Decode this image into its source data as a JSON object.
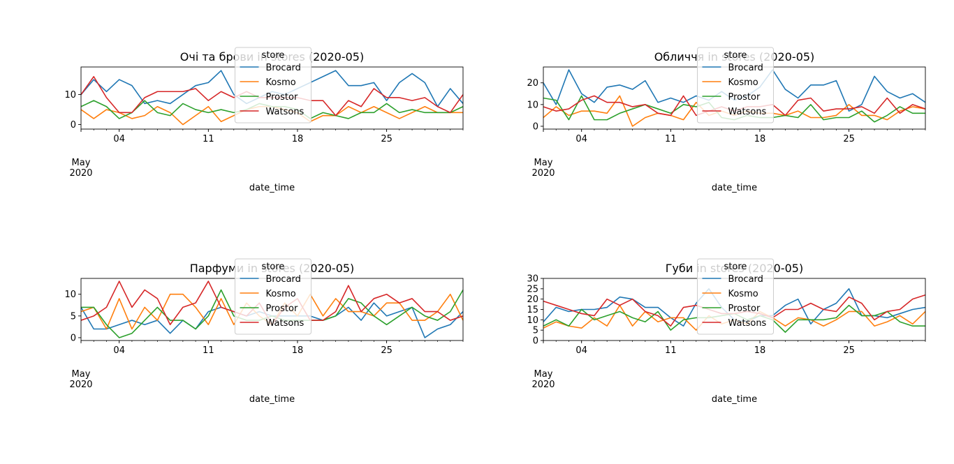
{
  "x_start_month_label": "May",
  "x_start_year_label": "2020",
  "legend_title": "store",
  "series_colors": {
    "Brocard": "#1f77b4",
    "Kosmo": "#ff7f0e",
    "Prostor": "#2ca02c",
    "Watsons": "#d62728"
  },
  "chart_data": [
    {
      "type": "line",
      "title": "Очі та брови in stores (2020-05)",
      "xlabel": "date_time",
      "ylabel": "",
      "x": [
        "2020-05-01",
        "2020-05-02",
        "2020-05-03",
        "2020-05-04",
        "2020-05-05",
        "2020-05-06",
        "2020-05-07",
        "2020-05-08",
        "2020-05-09",
        "2020-05-10",
        "2020-05-11",
        "2020-05-12",
        "2020-05-13",
        "2020-05-14",
        "2020-05-15",
        "2020-05-16",
        "2020-05-17",
        "2020-05-18",
        "2020-05-19",
        "2020-05-20",
        "2020-05-21",
        "2020-05-22",
        "2020-05-23",
        "2020-05-24",
        "2020-05-25",
        "2020-05-26",
        "2020-05-27",
        "2020-05-28",
        "2020-05-29",
        "2020-05-30",
        "2020-05-31"
      ],
      "xlim": [
        "2020-05-01",
        "2020-05-31"
      ],
      "x_ticks": [
        "04",
        "11",
        "18",
        "25"
      ],
      "ylim": [
        -1.5,
        19.2
      ],
      "y_ticks": [
        0,
        10
      ],
      "legend": {
        "title": "store",
        "location": "upper-center"
      },
      "series": [
        {
          "name": "Brocard",
          "values": [
            10,
            15,
            11,
            15,
            13,
            7,
            8,
            7,
            10,
            13,
            14,
            18,
            10,
            7,
            9,
            11,
            10,
            12,
            14,
            16,
            18,
            13,
            13,
            14,
            8,
            14,
            17,
            14,
            6,
            12,
            7
          ]
        },
        {
          "name": "Kosmo",
          "values": [
            5,
            2,
            5,
            4,
            2,
            3,
            6,
            4,
            0,
            3,
            6,
            1,
            3,
            5,
            6,
            6,
            5,
            4,
            1,
            3,
            3,
            6,
            4,
            6,
            4,
            2,
            4,
            6,
            4,
            4,
            4
          ]
        },
        {
          "name": "Prostor",
          "values": [
            6,
            8,
            6,
            2,
            4,
            8,
            4,
            3,
            7,
            5,
            4,
            5,
            4,
            5,
            7,
            6,
            6,
            5,
            2,
            4,
            3,
            2,
            4,
            4,
            7,
            4,
            5,
            4,
            4,
            4,
            6
          ]
        },
        {
          "name": "Watsons",
          "values": [
            10,
            16,
            9,
            4,
            4,
            9,
            11,
            11,
            11,
            12,
            8,
            11,
            9,
            11,
            9,
            9,
            9,
            9,
            8,
            8,
            3,
            8,
            6,
            12,
            9,
            9,
            8,
            9,
            6,
            4,
            10
          ]
        }
      ]
    },
    {
      "type": "line",
      "title": "Обличчя in stores (2020-05)",
      "xlabel": "date_time",
      "ylabel": "",
      "x": [
        "2020-05-01",
        "2020-05-02",
        "2020-05-03",
        "2020-05-04",
        "2020-05-05",
        "2020-05-06",
        "2020-05-07",
        "2020-05-08",
        "2020-05-09",
        "2020-05-10",
        "2020-05-11",
        "2020-05-12",
        "2020-05-13",
        "2020-05-14",
        "2020-05-15",
        "2020-05-16",
        "2020-05-17",
        "2020-05-18",
        "2020-05-19",
        "2020-05-20",
        "2020-05-21",
        "2020-05-22",
        "2020-05-23",
        "2020-05-24",
        "2020-05-25",
        "2020-05-26",
        "2020-05-27",
        "2020-05-28",
        "2020-05-29",
        "2020-05-30",
        "2020-05-31"
      ],
      "xlim": [
        "2020-05-01",
        "2020-05-31"
      ],
      "x_ticks": [
        "04",
        "11",
        "18",
        "25"
      ],
      "ylim": [
        -1.3,
        27.3
      ],
      "y_ticks": [
        0,
        10,
        20
      ],
      "legend": {
        "title": "store",
        "location": "upper-center"
      },
      "series": [
        {
          "name": "Brocard",
          "values": [
            20,
            10,
            26,
            15,
            11,
            18,
            19,
            17,
            21,
            11,
            13,
            11,
            14,
            12,
            16,
            12,
            14,
            18,
            26,
            17,
            13,
            19,
            19,
            21,
            7,
            10,
            23,
            16,
            13,
            15,
            11
          ]
        },
        {
          "name": "Kosmo",
          "values": [
            4,
            9,
            5,
            7,
            7,
            6,
            14,
            0,
            4,
            6,
            5,
            3,
            11,
            5,
            7,
            5,
            7,
            6,
            6,
            5,
            7,
            4,
            4,
            5,
            10,
            5,
            5,
            3,
            7,
            9,
            8
          ]
        },
        {
          "name": "Prostor",
          "values": [
            13,
            12,
            3,
            14,
            3,
            3,
            6,
            8,
            10,
            8,
            6,
            10,
            9,
            11,
            4,
            3,
            5,
            4,
            4,
            5,
            4,
            10,
            3,
            4,
            4,
            7,
            2,
            5,
            9,
            6,
            6
          ]
        },
        {
          "name": "Watsons",
          "values": [
            9,
            7,
            8,
            12,
            14,
            11,
            11,
            9,
            10,
            6,
            5,
            14,
            5,
            7,
            9,
            7,
            9,
            9,
            10,
            5,
            12,
            13,
            7,
            8,
            8,
            9,
            6,
            13,
            6,
            10,
            8
          ]
        }
      ]
    },
    {
      "type": "line",
      "title": "Парфуми in stores (2020-05)",
      "xlabel": "date_time",
      "ylabel": "",
      "x": [
        "2020-05-01",
        "2020-05-02",
        "2020-05-03",
        "2020-05-04",
        "2020-05-05",
        "2020-05-06",
        "2020-05-07",
        "2020-05-08",
        "2020-05-09",
        "2020-05-10",
        "2020-05-11",
        "2020-05-12",
        "2020-05-13",
        "2020-05-14",
        "2020-05-15",
        "2020-05-16",
        "2020-05-17",
        "2020-05-18",
        "2020-05-19",
        "2020-05-20",
        "2020-05-21",
        "2020-05-22",
        "2020-05-23",
        "2020-05-24",
        "2020-05-25",
        "2020-05-26",
        "2020-05-27",
        "2020-05-28",
        "2020-05-29",
        "2020-05-30",
        "2020-05-31"
      ],
      "xlim": [
        "2020-05-01",
        "2020-05-31"
      ],
      "x_ticks": [
        "04",
        "11",
        "18",
        "25"
      ],
      "ylim": [
        -0.65,
        13.65
      ],
      "y_ticks": [
        0,
        5,
        10
      ],
      "legend": {
        "title": "store",
        "location": "upper-center"
      },
      "series": [
        {
          "name": "Brocard",
          "values": [
            7,
            2,
            2,
            3,
            4,
            3,
            4,
            1,
            4,
            2,
            6,
            7,
            6,
            5,
            6,
            5,
            5,
            5,
            5,
            4,
            5,
            7,
            4,
            8,
            5,
            6,
            7,
            0,
            2,
            3,
            6
          ]
        },
        {
          "name": "Kosmo",
          "values": [
            6,
            7,
            2,
            9,
            2,
            7,
            4,
            10,
            10,
            7,
            3,
            9,
            3,
            8,
            5,
            3,
            8,
            5,
            10,
            5,
            9,
            6,
            6,
            5,
            8,
            8,
            4,
            4,
            6,
            10,
            4
          ]
        },
        {
          "name": "Prostor",
          "values": [
            7,
            7,
            3,
            0,
            1,
            4,
            7,
            4,
            4,
            2,
            5,
            11,
            5,
            4,
            4,
            5,
            4,
            4,
            4,
            4,
            5,
            9,
            8,
            5,
            3,
            5,
            7,
            5,
            4,
            6,
            11
          ]
        },
        {
          "name": "Watsons",
          "values": [
            4,
            5,
            7,
            13,
            7,
            11,
            9,
            3,
            7,
            8,
            13,
            7,
            6,
            5,
            8,
            3,
            7,
            9,
            4,
            4,
            6,
            12,
            6,
            9,
            10,
            8,
            9,
            6,
            6,
            4,
            5
          ]
        }
      ]
    },
    {
      "type": "line",
      "title": "Губи in stores (2020-05)",
      "xlabel": "date_time",
      "ylabel": "",
      "x": [
        "2020-05-01",
        "2020-05-02",
        "2020-05-03",
        "2020-05-04",
        "2020-05-05",
        "2020-05-06",
        "2020-05-07",
        "2020-05-08",
        "2020-05-09",
        "2020-05-10",
        "2020-05-11",
        "2020-05-12",
        "2020-05-13",
        "2020-05-14",
        "2020-05-15",
        "2020-05-16",
        "2020-05-17",
        "2020-05-18",
        "2020-05-19",
        "2020-05-20",
        "2020-05-21",
        "2020-05-22",
        "2020-05-23",
        "2020-05-24",
        "2020-05-25",
        "2020-05-26",
        "2020-05-27",
        "2020-05-28",
        "2020-05-29",
        "2020-05-30",
        "2020-05-31"
      ],
      "xlim": [
        "2020-05-01",
        "2020-05-31"
      ],
      "x_ticks": [
        "04",
        "11",
        "18",
        "25"
      ],
      "ylim": [
        0,
        30
      ],
      "y_ticks": [
        0,
        5,
        10,
        15,
        20,
        25,
        30
      ],
      "legend": {
        "title": "store",
        "location": "upper-center"
      },
      "series": [
        {
          "name": "Brocard",
          "values": [
            9,
            16,
            14,
            15,
            15,
            16,
            21,
            20,
            16,
            16,
            11,
            7,
            18,
            25,
            16,
            10,
            9,
            12,
            12,
            17,
            20,
            8,
            15,
            18,
            25,
            12,
            12,
            11,
            13,
            15,
            16
          ]
        },
        {
          "name": "Kosmo",
          "values": [
            6,
            9,
            7,
            6,
            11,
            7,
            17,
            7,
            14,
            9,
            11,
            11,
            5,
            12,
            8,
            10,
            8,
            14,
            11,
            7,
            11,
            10,
            7,
            10,
            14,
            14,
            7,
            9,
            12,
            8,
            14
          ]
        },
        {
          "name": "Prostor",
          "values": [
            7,
            10,
            7,
            15,
            10,
            12,
            14,
            11,
            9,
            14,
            5,
            10,
            11,
            11,
            12,
            13,
            10,
            12,
            10,
            4,
            10,
            10,
            10,
            11,
            17,
            12,
            12,
            14,
            9,
            7,
            7
          ]
        },
        {
          "name": "Watsons",
          "values": [
            19,
            17,
            15,
            13,
            12,
            20,
            17,
            20,
            14,
            12,
            7,
            16,
            17,
            15,
            13,
            13,
            14,
            13,
            11,
            15,
            15,
            18,
            15,
            14,
            21,
            18,
            10,
            14,
            15,
            20,
            22
          ]
        }
      ]
    }
  ]
}
